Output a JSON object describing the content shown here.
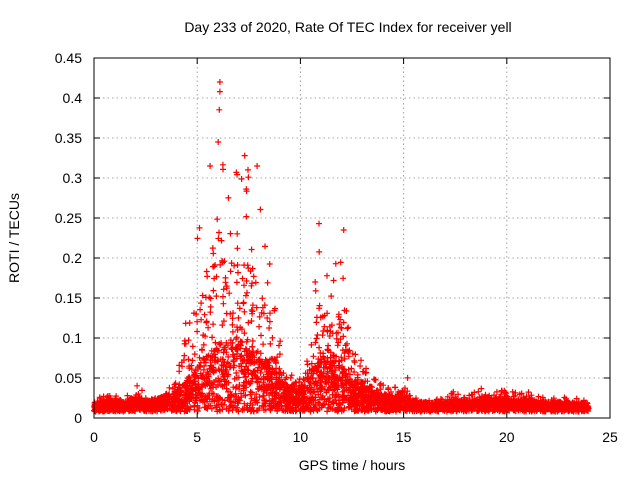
{
  "chart_data": {
    "type": "scatter",
    "title": "Day 233 of 2020, Rate Of TEC Index for receiver yell",
    "xlabel": "GPS time / hours",
    "ylabel": "ROTI / TECUs",
    "xlim": [
      0,
      25
    ],
    "ylim": [
      0,
      0.45
    ],
    "x_ticks": [
      "0",
      "5",
      "10",
      "15",
      "20",
      "25"
    ],
    "y_ticks": [
      "0",
      "0.05",
      "0.1",
      "0.15",
      "0.2",
      "0.25",
      "0.3",
      "0.35",
      "0.4",
      "0.45"
    ],
    "grid": true,
    "marker": "plus",
    "color": "#ff0000",
    "envelope": {
      "x": [
        0,
        0.5,
        1,
        1.5,
        2,
        2.5,
        3,
        3.5,
        4,
        4.5,
        5,
        5.5,
        6,
        6.5,
        7,
        7.5,
        8,
        8.5,
        9,
        9.5,
        10,
        10.5,
        11,
        11.5,
        12,
        12.5,
        13,
        13.5,
        14,
        14.5,
        15,
        15.5,
        16,
        16.5,
        17,
        17.5,
        18,
        18.5,
        19,
        19.5,
        20,
        20.5,
        21,
        21.5,
        22,
        22.5,
        23,
        23.5,
        24
      ],
      "max_roti": [
        0.025,
        0.03,
        0.028,
        0.025,
        0.045,
        0.03,
        0.03,
        0.04,
        0.045,
        0.15,
        0.23,
        0.3,
        0.42,
        0.28,
        0.33,
        0.31,
        0.27,
        0.22,
        0.1,
        0.06,
        0.05,
        0.14,
        0.24,
        0.17,
        0.23,
        0.09,
        0.075,
        0.05,
        0.045,
        0.04,
        0.065,
        0.03,
        0.03,
        0.025,
        0.03,
        0.035,
        0.03,
        0.035,
        0.045,
        0.035,
        0.04,
        0.03,
        0.035,
        0.03,
        0.025,
        0.03,
        0.025,
        0.025,
        0.02
      ],
      "typical_roti": [
        0.015,
        0.018,
        0.018,
        0.016,
        0.02,
        0.018,
        0.02,
        0.025,
        0.03,
        0.045,
        0.06,
        0.08,
        0.09,
        0.09,
        0.1,
        0.09,
        0.08,
        0.065,
        0.045,
        0.035,
        0.03,
        0.055,
        0.07,
        0.08,
        0.065,
        0.04,
        0.035,
        0.03,
        0.025,
        0.022,
        0.025,
        0.018,
        0.016,
        0.016,
        0.017,
        0.018,
        0.018,
        0.02,
        0.02,
        0.02,
        0.02,
        0.018,
        0.02,
        0.018,
        0.017,
        0.017,
        0.016,
        0.015,
        0.014
      ]
    },
    "notable_points": [
      {
        "x": 6.1,
        "y": 0.42
      },
      {
        "x": 6.1,
        "y": 0.408
      },
      {
        "x": 7.3,
        "y": 0.328
      },
      {
        "x": 7.9,
        "y": 0.315
      },
      {
        "x": 10.9,
        "y": 0.243
      },
      {
        "x": 12.1,
        "y": 0.235
      }
    ]
  }
}
